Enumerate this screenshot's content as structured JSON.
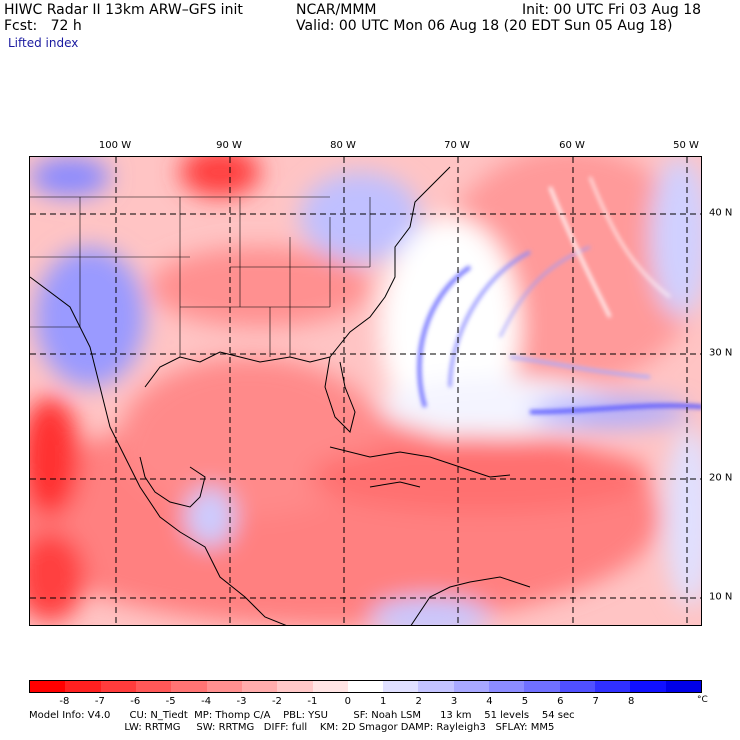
{
  "header": {
    "line1_left": "HIWC Radar II 13km ARW–GFS init",
    "line1_center": "NCAR/MMM",
    "line1_right": "Init: 00 UTC Fri 03 Aug 18",
    "line2_left": "Fcst:   72 h",
    "line2_right": "Valid: 00 UTC Mon 06 Aug 18 (20 EDT Sun 05 Aug 18)",
    "field": "Lifted index"
  },
  "map": {
    "lon_labels": [
      "100 W",
      "90 W",
      "80 W",
      "70 W",
      "60 W",
      "50 W"
    ],
    "lat_labels": [
      "40 N",
      "30 N",
      "20 N",
      "10 N"
    ]
  },
  "colorbar": {
    "ticks": [
      "-8",
      "-7",
      "-6",
      "-5",
      "-4",
      "-3",
      "-2",
      "-1",
      "0",
      "1",
      "2",
      "3",
      "4",
      "5",
      "6",
      "7",
      "8"
    ],
    "unit": "°C",
    "colors": [
      "#ff0000",
      "#ff2020",
      "#ff3c3c",
      "#ff5858",
      "#ff7474",
      "#ff9090",
      "#ffacac",
      "#ffc8c8",
      "#ffe4e4",
      "#ffffff",
      "#e0e0ff",
      "#c4c4ff",
      "#a8a8ff",
      "#8c8cff",
      "#7070ff",
      "#5050ff",
      "#3030ff",
      "#1010ff",
      "#0000e8"
    ]
  },
  "footer": {
    "line1": "Model Info: V4.0      CU: N_Tiedt  MP: Thomp C/A    PBL: YSU        SF: Noah LSM      13 km    51 levels    54 sec",
    "line2": "                              LW: RRTMG     SW: RRTMG   DIFF: full    KM: 2D Smagor DAMP: Rayleigh3   SFLAY: MM5"
  }
}
